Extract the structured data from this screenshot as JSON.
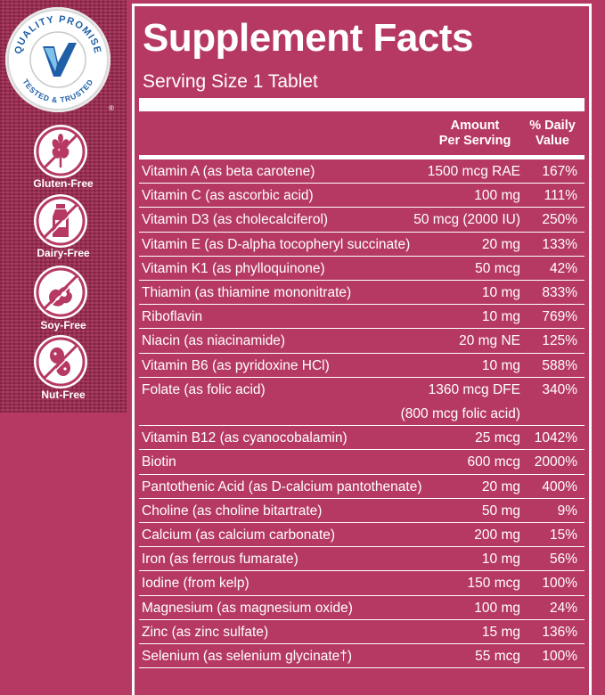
{
  "badge": {
    "top_text": "QUALITY PROMISE",
    "bottom_text": "TESTED & TRUSTED",
    "reg_mark": "®"
  },
  "icons": [
    {
      "name": "wheat-icon",
      "label": "Gluten-Free"
    },
    {
      "name": "milk-bottle-icon",
      "label": "Dairy-Free"
    },
    {
      "name": "soybean-icon",
      "label": "Soy-Free"
    },
    {
      "name": "peanut-icon",
      "label": "Nut-Free"
    }
  ],
  "facts": {
    "title": "Supplement Facts",
    "serving": "Serving Size 1 Tablet",
    "col_amount_1": "Amount",
    "col_amount_2": "Per Serving",
    "col_dv_1": "% Daily",
    "col_dv_2": "Value",
    "rows": [
      {
        "name": "Vitamin A (as beta carotene)",
        "amount": "1500 mcg RAE",
        "dv": "167%"
      },
      {
        "name": "Vitamin C (as ascorbic acid)",
        "amount": "100 mg",
        "dv": "111%"
      },
      {
        "name": "Vitamin D3 (as cholecalciferol)",
        "amount": "50 mcg (2000 IU)",
        "dv": "250%"
      },
      {
        "name": "Vitamin E (as D-alpha tocopheryl succinate)",
        "amount": "20 mg",
        "dv": "133%"
      },
      {
        "name": "Vitamin K1 (as phylloquinone)",
        "amount": "50 mcg",
        "dv": "42%"
      },
      {
        "name": "Thiamin (as thiamine mononitrate)",
        "amount": "10 mg",
        "dv": "833%"
      },
      {
        "name": "Riboflavin",
        "amount": "10 mg",
        "dv": "769%"
      },
      {
        "name": "Niacin (as niacinamide)",
        "amount": "20 mg NE",
        "dv": "125%"
      },
      {
        "name": "Vitamin B6 (as pyridoxine HCl)",
        "amount": "10 mg",
        "dv": "588%"
      },
      {
        "name": "Folate (as folic acid)",
        "amount": "1360 mcg DFE",
        "amount_2": "(800 mcg folic acid)",
        "dv": "340%"
      },
      {
        "name": "Vitamin B12 (as cyanocobalamin)",
        "amount": "25 mcg",
        "dv": "1042%"
      },
      {
        "name": "Biotin",
        "amount": "600 mcg",
        "dv": "2000%"
      },
      {
        "name": "Pantothenic Acid (as D-calcium pantothenate)",
        "amount": "20 mg",
        "dv": "400%"
      },
      {
        "name": "Choline (as choline bitartrate)",
        "amount": "50 mg",
        "dv": "9%"
      },
      {
        "name": "Calcium (as calcium carbonate)",
        "amount": "200 mg",
        "dv": "15%"
      },
      {
        "name": "Iron (as ferrous fumarate)",
        "amount": "10 mg",
        "dv": "56%"
      },
      {
        "name": "Iodine (from kelp)",
        "amount": "150 mcg",
        "dv": "100%"
      },
      {
        "name": "Magnesium (as magnesium oxide)",
        "amount": "100 mg",
        "dv": "24%"
      },
      {
        "name": "Zinc (as zinc sulfate)",
        "amount": "15 mg",
        "dv": "136%"
      },
      {
        "name": "Selenium (as selenium glycinate†)",
        "amount": "55 mcg",
        "dv": "100%"
      }
    ]
  },
  "colors": {
    "background": "#b63963",
    "texture": "#a02a52",
    "text": "#ffffff",
    "badge_blue": "#1f5fa8"
  }
}
